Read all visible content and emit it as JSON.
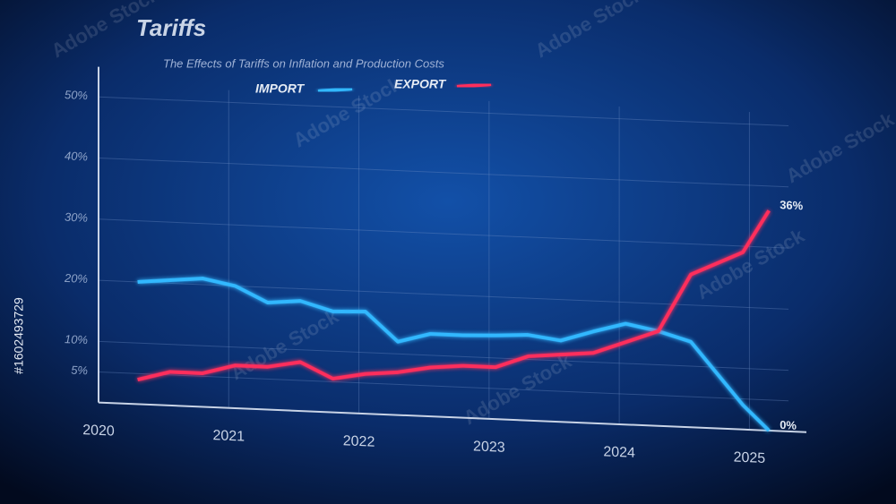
{
  "chart_data": {
    "type": "line",
    "title": "Tariffs",
    "subtitle": "The Effects of Tariffs on Inflation and Production Costs",
    "x": [
      2020.3,
      2020.55,
      2020.8,
      2021.05,
      2021.3,
      2021.55,
      2021.8,
      2022.05,
      2022.3,
      2022.55,
      2022.8,
      2023.05,
      2023.3,
      2023.55,
      2023.8,
      2024.05,
      2024.3,
      2024.55,
      2024.75,
      2024.95,
      2025.15
    ],
    "series": [
      {
        "name": "IMPORT",
        "color": "#33b8ff",
        "values": [
          20,
          20.5,
          21,
          20,
          17.5,
          18,
          16.5,
          16.7,
          12,
          13.5,
          13.5,
          13.7,
          14,
          13.3,
          15,
          16.5,
          15.5,
          14,
          9,
          4,
          0
        ],
        "value_labels": [
          null,
          null,
          null,
          null,
          null,
          null,
          null,
          null,
          null,
          null,
          null,
          null,
          null,
          null,
          null,
          null,
          null,
          null,
          null,
          null,
          "0%"
        ]
      },
      {
        "name": "EXPORT",
        "color": "#ff2d5c",
        "values": [
          4,
          5.5,
          5.5,
          7,
          7,
          8,
          5.5,
          6.5,
          7,
          8,
          8.5,
          8.5,
          10.5,
          11,
          11.5,
          13.5,
          15.5,
          25,
          27,
          29,
          36
        ],
        "value_labels": [
          null,
          null,
          null,
          null,
          null,
          null,
          null,
          null,
          null,
          null,
          null,
          null,
          null,
          null,
          null,
          null,
          null,
          null,
          null,
          null,
          "36%"
        ]
      }
    ],
    "xlim": [
      2020,
      2025.3
    ],
    "xticks": [
      2020,
      2021,
      2022,
      2023,
      2024,
      2025
    ],
    "ylim": [
      0,
      52
    ],
    "yticks": [
      {
        "value": 5,
        "label": "5%"
      },
      {
        "value": 10,
        "label": "10%"
      },
      {
        "value": 20,
        "label": "20%"
      },
      {
        "value": 30,
        "label": "30%"
      },
      {
        "value": 40,
        "label": "40%"
      },
      {
        "value": 50,
        "label": "50%"
      }
    ],
    "grid": true,
    "legend": "top",
    "stock_id": "#1602493729",
    "watermark": "Adobe Stock"
  }
}
